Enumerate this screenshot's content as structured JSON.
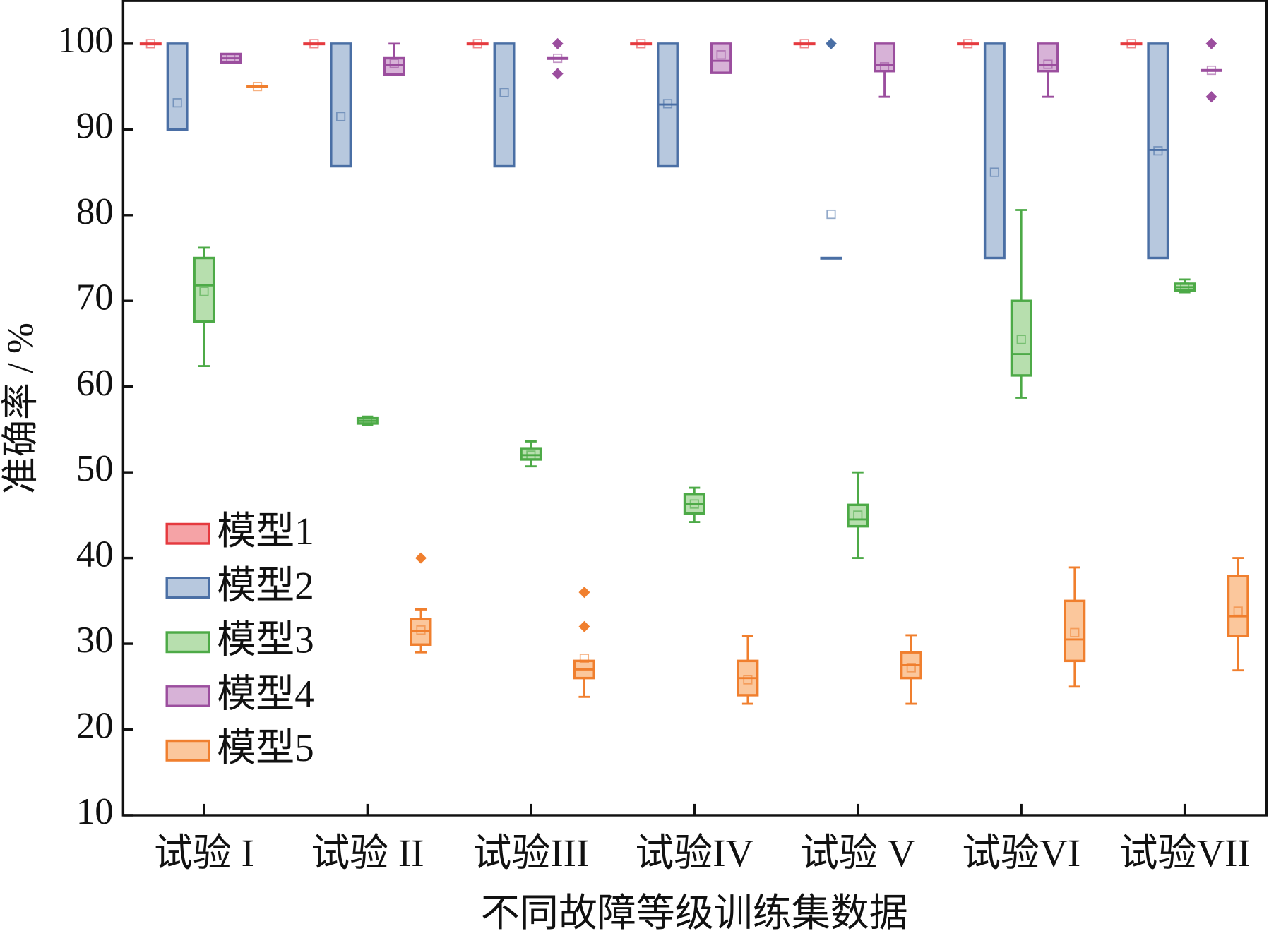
{
  "chart_data": {
    "type": "box",
    "categories": [
      "试验 I",
      "试验 II",
      "试验III",
      "试验IV",
      "试验 V",
      "试验VI",
      "试验VII"
    ],
    "xlabel": "不同故障等级训练集数据",
    "ylabel": "准确率 / %",
    "ylim": [
      10,
      105
    ],
    "yticks": [
      10,
      20,
      30,
      40,
      50,
      60,
      70,
      80,
      90,
      100
    ],
    "legend": "lower left",
    "series": [
      {
        "name": "模型1",
        "color": "#e53a3f",
        "fill": "#f5a3a6",
        "boxes": [
          {
            "min": 100,
            "q1": 100,
            "median": 100,
            "q3": 100,
            "max": 100,
            "mean": 100,
            "outliers": []
          },
          {
            "min": 100,
            "q1": 100,
            "median": 100,
            "q3": 100,
            "max": 100,
            "mean": 100,
            "outliers": []
          },
          {
            "min": 100,
            "q1": 100,
            "median": 100,
            "q3": 100,
            "max": 100,
            "mean": 100,
            "outliers": []
          },
          {
            "min": 100,
            "q1": 100,
            "median": 100,
            "q3": 100,
            "max": 100,
            "mean": 100,
            "outliers": []
          },
          {
            "min": 100,
            "q1": 100,
            "median": 100,
            "q3": 100,
            "max": 100,
            "mean": 100,
            "outliers": []
          },
          {
            "min": 100,
            "q1": 100,
            "median": 100,
            "q3": 100,
            "max": 100,
            "mean": 100,
            "outliers": []
          },
          {
            "min": 100,
            "q1": 100,
            "median": 100,
            "q3": 100,
            "max": 100,
            "mean": 100,
            "outliers": []
          }
        ]
      },
      {
        "name": "模型2",
        "color": "#4a6fa5",
        "fill": "#b7c8de",
        "boxes": [
          {
            "min": 90,
            "q1": 90,
            "median": 90,
            "q3": 100,
            "max": 100,
            "mean": 93.1,
            "outliers": []
          },
          {
            "min": 85.7,
            "q1": 85.7,
            "median": 85.7,
            "q3": 100,
            "max": 100,
            "mean": 91.5,
            "outliers": []
          },
          {
            "min": 85.7,
            "q1": 85.7,
            "median": 85.7,
            "q3": 100,
            "max": 100,
            "mean": 94.3,
            "outliers": []
          },
          {
            "min": 85.7,
            "q1": 85.7,
            "median": 92.9,
            "q3": 100,
            "max": 100,
            "mean": 93,
            "outliers": []
          },
          {
            "min": 75,
            "q1": 75,
            "median": 75,
            "q3": 75,
            "max": 75,
            "mean": 80.1,
            "outliers": [
              100
            ]
          },
          {
            "min": 75,
            "q1": 75,
            "median": 100,
            "q3": 100,
            "max": 100,
            "mean": 85,
            "outliers": []
          },
          {
            "min": 75,
            "q1": 75,
            "median": 87.6,
            "q3": 100,
            "max": 100,
            "mean": 87.5,
            "outliers": []
          }
        ]
      },
      {
        "name": "模型3",
        "color": "#4daa47",
        "fill": "#b7dfae",
        "boxes": [
          {
            "min": 62.4,
            "q1": 67.6,
            "median": 71.8,
            "q3": 75,
            "max": 76.2,
            "mean": 71.1,
            "outliers": []
          },
          {
            "min": 55.5,
            "q1": 55.7,
            "median": 56,
            "q3": 56.3,
            "max": 56.5,
            "mean": 56,
            "outliers": []
          },
          {
            "min": 50.7,
            "q1": 51.5,
            "median": 52,
            "q3": 52.8,
            "max": 53.6,
            "mean": 52,
            "outliers": []
          },
          {
            "min": 44.2,
            "q1": 45.2,
            "median": 46.3,
            "q3": 47.4,
            "max": 48.2,
            "mean": 46.3,
            "outliers": []
          },
          {
            "min": 40,
            "q1": 43.7,
            "median": 44.5,
            "q3": 46.2,
            "max": 50,
            "mean": 45,
            "outliers": []
          },
          {
            "min": 58.7,
            "q1": 61.3,
            "median": 63.8,
            "q3": 70,
            "max": 80.6,
            "mean": 65.5,
            "outliers": []
          },
          {
            "min": 71,
            "q1": 71.2,
            "median": 71.6,
            "q3": 72,
            "max": 72.5,
            "mean": 71.6,
            "outliers": []
          }
        ]
      },
      {
        "name": "模型4",
        "color": "#9b4e9e",
        "fill": "#d7b2d7",
        "boxes": [
          {
            "min": 97.8,
            "q1": 97.8,
            "median": 98.3,
            "q3": 98.8,
            "max": 98.8,
            "mean": 98.3,
            "outliers": []
          },
          {
            "min": 96.4,
            "q1": 96.4,
            "median": 97.5,
            "q3": 98.3,
            "max": 100,
            "mean": 97.7,
            "outliers": []
          },
          {
            "min": 98.3,
            "q1": 98.3,
            "median": 98.3,
            "q3": 98.3,
            "max": 98.3,
            "mean": 98.3,
            "outliers": [
              100,
              96.5
            ]
          },
          {
            "min": 96.6,
            "q1": 96.6,
            "median": 98,
            "q3": 100,
            "max": 100,
            "mean": 98.7,
            "outliers": []
          },
          {
            "min": 93.8,
            "q1": 96.8,
            "median": 97.5,
            "q3": 100,
            "max": 100,
            "mean": 97.3,
            "outliers": []
          },
          {
            "min": 93.8,
            "q1": 96.8,
            "median": 97.5,
            "q3": 100,
            "max": 100,
            "mean": 97.6,
            "outliers": []
          },
          {
            "min": 96.9,
            "q1": 96.9,
            "median": 96.9,
            "q3": 96.9,
            "max": 96.9,
            "mean": 96.9,
            "outliers": [
              100,
              93.8
            ]
          }
        ]
      },
      {
        "name": "模型5",
        "color": "#f07f2e",
        "fill": "#fbc79c",
        "boxes": [
          {
            "min": 95,
            "q1": 95,
            "median": 95,
            "q3": 95,
            "max": 95,
            "mean": 95,
            "outliers": []
          },
          {
            "min": 29,
            "q1": 29.9,
            "median": 31.5,
            "q3": 32.9,
            "max": 34,
            "mean": 31.6,
            "outliers": [
              40
            ]
          },
          {
            "min": 23.8,
            "q1": 26,
            "median": 27,
            "q3": 28,
            "max": 28,
            "mean": 28.3,
            "outliers": [
              36,
              32
            ]
          },
          {
            "min": 23,
            "q1": 24,
            "median": 26,
            "q3": 28,
            "max": 30.9,
            "mean": 25.8,
            "outliers": []
          },
          {
            "min": 23,
            "q1": 26,
            "median": 27.5,
            "q3": 29,
            "max": 31,
            "mean": 27.2,
            "outliers": []
          },
          {
            "min": 25,
            "q1": 28,
            "median": 30.5,
            "q3": 35,
            "max": 38.9,
            "mean": 31.3,
            "outliers": []
          },
          {
            "min": 26.9,
            "q1": 30.9,
            "median": 33.2,
            "q3": 37.9,
            "max": 40,
            "mean": 33.8,
            "outliers": []
          }
        ]
      }
    ]
  }
}
